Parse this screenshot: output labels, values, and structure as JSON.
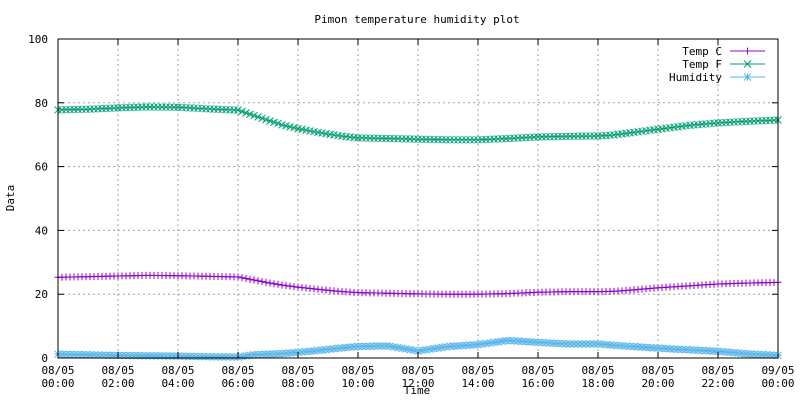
{
  "chart_data": {
    "type": "line",
    "title": "Pimon temperature   humidity plot",
    "xlabel": "Time",
    "ylabel": "Data",
    "ylim": [
      0,
      100
    ],
    "yticks": [
      "0",
      "20",
      "40",
      "60",
      "80",
      "100"
    ],
    "xlim": [
      0,
      24
    ],
    "xticks": [
      {
        "date": "08/05",
        "time": "00:00"
      },
      {
        "date": "08/05",
        "time": "02:00"
      },
      {
        "date": "08/05",
        "time": "04:00"
      },
      {
        "date": "08/05",
        "time": "06:00"
      },
      {
        "date": "08/05",
        "time": "08:00"
      },
      {
        "date": "08/05",
        "time": "10:00"
      },
      {
        "date": "08/05",
        "time": "12:00"
      },
      {
        "date": "08/05",
        "time": "14:00"
      },
      {
        "date": "08/05",
        "time": "16:00"
      },
      {
        "date": "08/05",
        "time": "18:00"
      },
      {
        "date": "08/05",
        "time": "20:00"
      },
      {
        "date": "08/05",
        "time": "22:00"
      },
      {
        "date": "09/05",
        "time": "00:00"
      }
    ],
    "grid": true,
    "legend": "top-right",
    "x_hours": [
      0,
      1,
      2,
      3,
      4,
      5,
      6,
      6.5,
      7,
      7.5,
      8,
      8.5,
      9,
      9.5,
      10,
      11,
      12,
      13,
      14,
      15,
      16,
      17,
      18,
      18.5,
      19,
      19.5,
      20,
      20.5,
      21,
      22,
      23,
      24
    ],
    "series": [
      {
        "name": "Temp C",
        "color": "#9400d3",
        "marker": "plus",
        "values": [
          25.3,
          25.5,
          25.7,
          25.9,
          25.8,
          25.6,
          25.4,
          24.5,
          23.6,
          22.8,
          22.2,
          21.7,
          21.2,
          20.8,
          20.5,
          20.3,
          20.1,
          20.0,
          20.0,
          20.2,
          20.6,
          20.8,
          20.8,
          20.9,
          21.2,
          21.6,
          22.0,
          22.3,
          22.6,
          23.2,
          23.5,
          23.7
        ]
      },
      {
        "name": "Temp F",
        "color": "#009e73",
        "marker": "cross",
        "values": [
          77.8,
          78.0,
          78.4,
          78.7,
          78.6,
          78.1,
          77.7,
          76.1,
          74.5,
          73.0,
          71.9,
          71.0,
          70.2,
          69.5,
          69.0,
          68.8,
          68.6,
          68.4,
          68.4,
          68.8,
          69.3,
          69.5,
          69.6,
          69.9,
          70.5,
          71.1,
          71.7,
          72.3,
          72.9,
          73.7,
          74.2,
          74.6
        ]
      },
      {
        "name": "Humidity",
        "color": "#56b4e9",
        "marker": "star",
        "values": [
          1.2,
          1.0,
          0.8,
          0.7,
          0.6,
          0.4,
          0.3,
          1.0,
          1.2,
          1.4,
          1.8,
          2.2,
          2.7,
          3.2,
          3.6,
          3.8,
          2.2,
          3.6,
          4.2,
          5.5,
          4.9,
          4.4,
          4.4,
          4.0,
          3.7,
          3.4,
          3.1,
          2.8,
          2.6,
          2.1,
          1.3,
          0.8
        ]
      }
    ]
  }
}
